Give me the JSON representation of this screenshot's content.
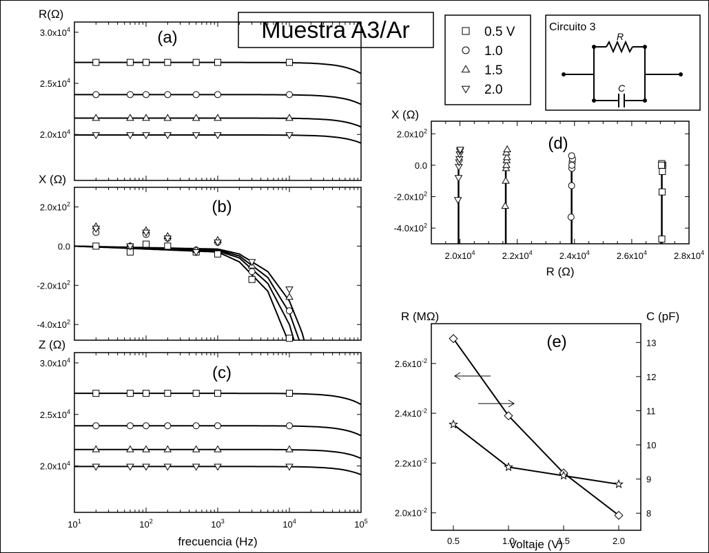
{
  "title": "Muestra A3/Ar",
  "legend": {
    "entries": [
      {
        "label": "0.5 V",
        "symbol": "square"
      },
      {
        "label": "1.0",
        "symbol": "circle"
      },
      {
        "label": "1.5",
        "symbol": "triangle-up"
      },
      {
        "label": "2.0",
        "symbol": "triangle-down"
      }
    ]
  },
  "circuit": {
    "label": "Circuito 3",
    "resistor_label": "R",
    "capacitor_label": "C"
  },
  "chart_data": [
    {
      "panel": "(a)",
      "type": "scatter",
      "ylabel": "R(Ω)",
      "xscale": "log",
      "xlim": [
        10,
        100000
      ],
      "ylim": [
        15500,
        31000
      ],
      "yticks": [
        20000,
        25000,
        30000
      ],
      "ytick_labels": [
        "2.0x10^4",
        "2.5x10^4",
        "3.0x10^4"
      ],
      "series": [
        {
          "symbol": "square",
          "x": [
            20,
            60,
            100,
            200,
            500,
            1000,
            10000
          ],
          "y": [
            27050,
            27050,
            27050,
            27050,
            27050,
            27050,
            27050
          ],
          "fit_level": 27050
        },
        {
          "symbol": "circle",
          "x": [
            20,
            60,
            100,
            200,
            500,
            1000,
            10000
          ],
          "y": [
            23900,
            23900,
            23900,
            23900,
            23900,
            23900,
            23900
          ],
          "fit_level": 23900
        },
        {
          "symbol": "triangle-up",
          "x": [
            20,
            60,
            100,
            200,
            500,
            1000,
            10000
          ],
          "y": [
            21600,
            21600,
            21600,
            21600,
            21600,
            21600,
            21600
          ],
          "fit_level": 21600
        },
        {
          "symbol": "triangle-down",
          "x": [
            20,
            60,
            100,
            200,
            500,
            1000,
            10000
          ],
          "y": [
            19950,
            19950,
            19950,
            19950,
            19950,
            19950,
            19950
          ],
          "fit_level": 19950
        }
      ]
    },
    {
      "panel": "(b)",
      "type": "scatter",
      "ylabel": "X (Ω)",
      "xscale": "log",
      "xlim": [
        10,
        100000
      ],
      "ylim": [
        -480,
        300
      ],
      "yticks": [
        -400,
        -200,
        0,
        200
      ],
      "ytick_labels": [
        "-4.0x10^2",
        "-2.0x10^2",
        "0.0",
        "2.0x10^2"
      ],
      "series": [
        {
          "symbol": "square",
          "x": [
            20,
            60,
            100,
            200,
            500,
            1000,
            3000,
            10000
          ],
          "y": [
            0,
            -30,
            10,
            0,
            -30,
            -40,
            -170,
            -470
          ]
        },
        {
          "symbol": "circle",
          "x": [
            20,
            60,
            100,
            200,
            500,
            1000,
            3000,
            10000
          ],
          "y": [
            70,
            0,
            60,
            40,
            -20,
            20,
            -130,
            -330
          ]
        },
        {
          "symbol": "triangle-up",
          "x": [
            20,
            60,
            100,
            200,
            500,
            1000,
            3000,
            10000
          ],
          "y": [
            100,
            0,
            80,
            50,
            -20,
            30,
            -100,
            -260
          ]
        },
        {
          "symbol": "triangle-down",
          "x": [
            20,
            60,
            100,
            200,
            500,
            1000,
            3000,
            10000
          ],
          "y": [
            90,
            0,
            70,
            40,
            -30,
            20,
            -80,
            -220
          ]
        }
      ],
      "fit_curves": [
        {
          "x": [
            10,
            1000,
            2000,
            5000,
            10000,
            15000,
            20000
          ],
          "y": [
            0,
            -30,
            -80,
            -230,
            -500,
            -750,
            -1000
          ]
        },
        {
          "x": [
            10,
            1000,
            2000,
            5000,
            10000,
            15000,
            20000,
            23000
          ],
          "y": [
            0,
            -25,
            -60,
            -190,
            -400,
            -620,
            -850,
            -1000
          ]
        },
        {
          "x": [
            10,
            1000,
            2000,
            5000,
            10000,
            15000,
            20000,
            27000
          ],
          "y": [
            0,
            -20,
            -50,
            -160,
            -340,
            -520,
            -720,
            -1000
          ]
        },
        {
          "x": [
            10,
            1000,
            2000,
            5000,
            10000,
            15000,
            20000,
            30000
          ],
          "y": [
            0,
            -15,
            -40,
            -130,
            -280,
            -440,
            -610,
            -1000
          ]
        }
      ]
    },
    {
      "panel": "(c)",
      "type": "scatter",
      "ylabel": "Z  (Ω)",
      "xlabel": "frecuencia  (Hz)",
      "xscale": "log",
      "xlim": [
        10,
        100000
      ],
      "ylim": [
        15500,
        31000
      ],
      "xticks": [
        10,
        100,
        1000,
        10000,
        100000
      ],
      "xtick_labels": [
        "10^1",
        "10^2",
        "10^3",
        "10^4",
        "10^5"
      ],
      "yticks": [
        20000,
        25000,
        30000
      ],
      "ytick_labels": [
        "2.0x10^4",
        "2.5x10^4",
        "3.0x10^4"
      ],
      "series": [
        {
          "symbol": "square",
          "x": [
            20,
            60,
            100,
            200,
            500,
            1000,
            10000
          ],
          "y": [
            27050,
            27050,
            27050,
            27050,
            27050,
            27050,
            27050
          ],
          "fit_level": 27050
        },
        {
          "symbol": "circle",
          "x": [
            20,
            60,
            100,
            200,
            500,
            1000,
            10000
          ],
          "y": [
            23900,
            23900,
            23900,
            23900,
            23900,
            23900,
            23900
          ],
          "fit_level": 23900
        },
        {
          "symbol": "triangle-up",
          "x": [
            20,
            60,
            100,
            200,
            500,
            1000,
            10000
          ],
          "y": [
            21600,
            21600,
            21600,
            21600,
            21600,
            21600,
            21600
          ],
          "fit_level": 21600
        },
        {
          "symbol": "triangle-down",
          "x": [
            20,
            60,
            100,
            200,
            500,
            1000,
            10000
          ],
          "y": [
            19950,
            19950,
            19950,
            19950,
            19950,
            19950,
            19950
          ],
          "fit_level": 19950
        }
      ]
    },
    {
      "panel": "(d)",
      "type": "scatter",
      "ylabel": "X (Ω)",
      "xlabel": "R (Ω)",
      "xlim": [
        19000,
        28000
      ],
      "ylim": [
        -500,
        280
      ],
      "xticks": [
        20000,
        22000,
        24000,
        26000,
        28000
      ],
      "xtick_labels": [
        "2.0x10^4",
        "2.2x10^4",
        "2.4x10^4",
        "2.6x10^4",
        "2.8x10^4"
      ],
      "yticks": [
        -400,
        -200,
        0,
        200
      ],
      "ytick_labels": [
        "-4.0x10^2",
        "-2.0x10^2",
        "0.0",
        "2.0x10^2"
      ],
      "series": [
        {
          "symbol": "square",
          "x": [
            27050,
            27060,
            27070,
            27080,
            27050,
            27040
          ],
          "y": [
            -470,
            -170,
            -40,
            0,
            10,
            0
          ]
        },
        {
          "symbol": "circle",
          "x": [
            23880,
            23900,
            23910,
            23920,
            23930,
            23900,
            23910
          ],
          "y": [
            -330,
            -130,
            -20,
            20,
            40,
            60,
            0
          ]
        },
        {
          "symbol": "triangle-up",
          "x": [
            21580,
            21600,
            21610,
            21620,
            21630,
            21640,
            21620,
            21650
          ],
          "y": [
            -260,
            -100,
            -20,
            0,
            30,
            50,
            80,
            100
          ]
        },
        {
          "symbol": "triangle-down",
          "x": [
            19930,
            19950,
            19960,
            19970,
            19980,
            19990,
            20000,
            20010
          ],
          "y": [
            -220,
            -80,
            -10,
            20,
            40,
            70,
            90,
            100
          ]
        }
      ],
      "fit_lines_x": [
        19950,
        21600,
        23900,
        27050
      ]
    },
    {
      "panel": "(e)",
      "type": "line",
      "ylabel": "R (MΩ)",
      "y2label": "C (pF)",
      "xlabel": "Voltaje  (V)",
      "xlim": [
        0.3,
        2.2
      ],
      "ylim": [
        0.0193,
        0.0276
      ],
      "y2lim": [
        7.5,
        13.55
      ],
      "xticks": [
        0.5,
        1.0,
        1.5,
        2.0
      ],
      "xtick_labels": [
        "0.5",
        "1.0",
        "1.5",
        "2.0"
      ],
      "yticks": [
        0.02,
        0.022,
        0.024,
        0.026
      ],
      "ytick_labels": [
        "2.0x10^-2",
        "2.2x10^-2",
        "2.4x10^-2",
        "2.6x10^-2"
      ],
      "y2ticks": [
        8,
        9,
        10,
        11,
        12,
        13
      ],
      "y2tick_labels": [
        "8",
        "9",
        "10",
        "11",
        "12",
        "13"
      ],
      "series": [
        {
          "name_symbol": "diamond",
          "axis": "left",
          "x": [
            0.5,
            1.0,
            1.5,
            2.0
          ],
          "y": [
            0.027,
            0.0239,
            0.0216,
            0.0199
          ]
        },
        {
          "name_symbol": "star",
          "axis": "right",
          "x": [
            0.5,
            1.0,
            1.5,
            2.0
          ],
          "y": [
            10.6,
            9.35,
            9.1,
            8.85
          ]
        }
      ]
    }
  ]
}
